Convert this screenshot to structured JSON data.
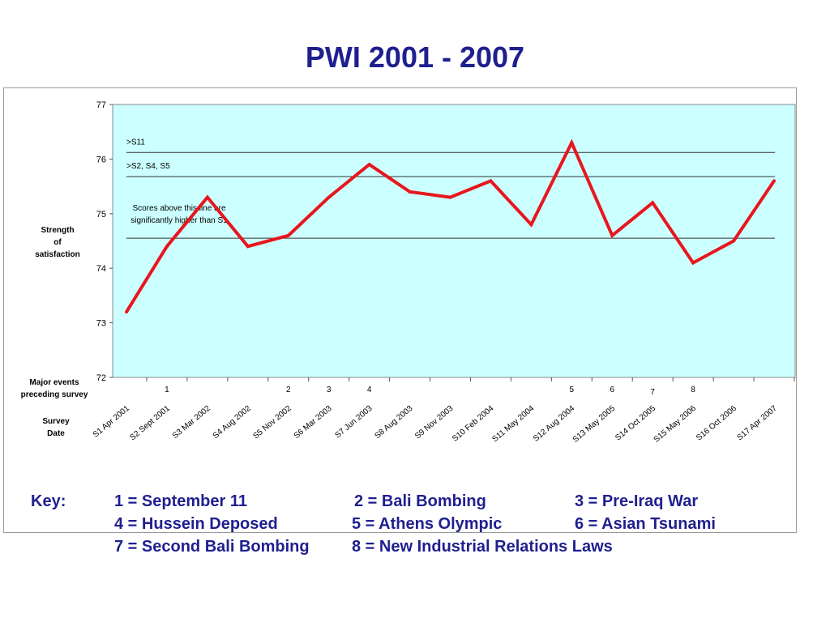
{
  "title": "PWI  2001 - 2007",
  "chart_data": {
    "type": "line",
    "ylim": [
      72,
      77
    ],
    "yticks": [
      72,
      73,
      74,
      75,
      76,
      77
    ],
    "ylabel": [
      "Strength",
      "of",
      "satisfaction"
    ],
    "events_label": [
      "Major events",
      "preceding survey"
    ],
    "date_label": [
      "Survey",
      "Date"
    ],
    "background": "#ccffff",
    "line_color": "#e8161d",
    "surveys": [
      {
        "label": "S1 Apr 2001",
        "value": 73.2,
        "event": ""
      },
      {
        "label": "S2 Sept 2001",
        "value": 74.4,
        "event": "1"
      },
      {
        "label": "S3 Mar 2002",
        "value": 75.3,
        "event": ""
      },
      {
        "label": "S4 Aug 2002",
        "value": 74.4,
        "event": ""
      },
      {
        "label": "S5 Nov 2002",
        "value": 74.6,
        "event": "2"
      },
      {
        "label": "S6 Mar 2003",
        "value": 75.3,
        "event": "3"
      },
      {
        "label": "S7 Jun 2003",
        "value": 75.9,
        "event": "4"
      },
      {
        "label": "S8 Aug 2003",
        "value": 75.4,
        "event": ""
      },
      {
        "label": "S9 Nov 2003",
        "value": 75.3,
        "event": ""
      },
      {
        "label": "S10 Feb 2004",
        "value": 75.6,
        "event": ""
      },
      {
        "label": "S11 May 2004",
        "value": 74.8,
        "event": ""
      },
      {
        "label": "S12 Aug 2004",
        "value": 76.3,
        "event": "5"
      },
      {
        "label": "S13 May 2005",
        "value": 74.6,
        "event": "6"
      },
      {
        "label": "S14 Oct 2005",
        "value": 75.2,
        "event": "7"
      },
      {
        "label": "S15 May 2006",
        "value": 74.1,
        "event": "8"
      },
      {
        "label": "S16 Oct 2006",
        "value": 74.5,
        "event": ""
      },
      {
        "label": "S17 Apr 2007",
        "value": 75.6,
        "event": ""
      }
    ],
    "thresholds": [
      {
        "value": 74.55,
        "label": "",
        "note": [
          "Scores above this line are",
          "significantly higher than S1"
        ]
      },
      {
        "value": 75.68,
        "label": ">S2, S4, S5",
        "note": []
      },
      {
        "value": 76.12,
        "label": ">S11",
        "note": []
      }
    ]
  },
  "key": {
    "heading": "Key:",
    "items": [
      "1 = September 11",
      "2 = Bali Bombing",
      "3 = Pre-Iraq War",
      "4 = Hussein Deposed",
      "5 = Athens Olympic",
      "6 = Asian Tsunami",
      "7 = Second Bali Bombing",
      "8 = New Industrial Relations Laws"
    ]
  }
}
